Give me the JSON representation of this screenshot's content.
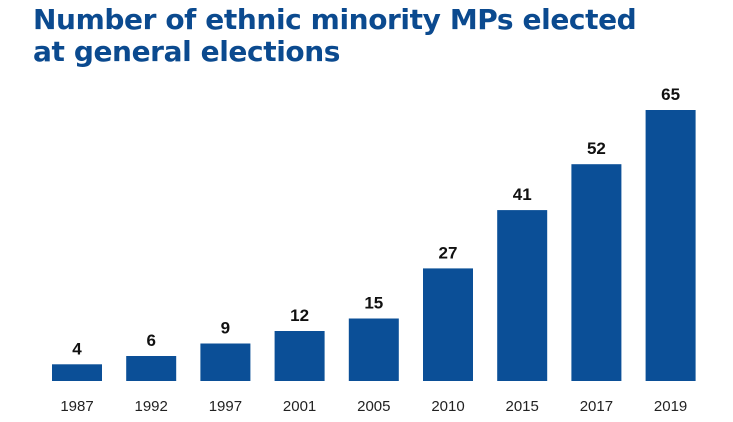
{
  "title_line1": "Number of ethnic minority MPs elected",
  "title_line2": "at general elections",
  "colors": {
    "title": "#0b4a8f",
    "bar": "#0b4f97"
  },
  "chart_data": {
    "type": "bar",
    "title": "Number of ethnic minority MPs elected at general elections",
    "categories": [
      "1987",
      "1992",
      "1997",
      "2001",
      "2005",
      "2010",
      "2015",
      "2017",
      "2019"
    ],
    "values": [
      4,
      6,
      9,
      12,
      15,
      27,
      41,
      52,
      65
    ],
    "xlabel": "",
    "ylabel": "",
    "ylim": [
      0,
      65
    ],
    "grid": false,
    "legend": "none",
    "data_labels": true
  }
}
